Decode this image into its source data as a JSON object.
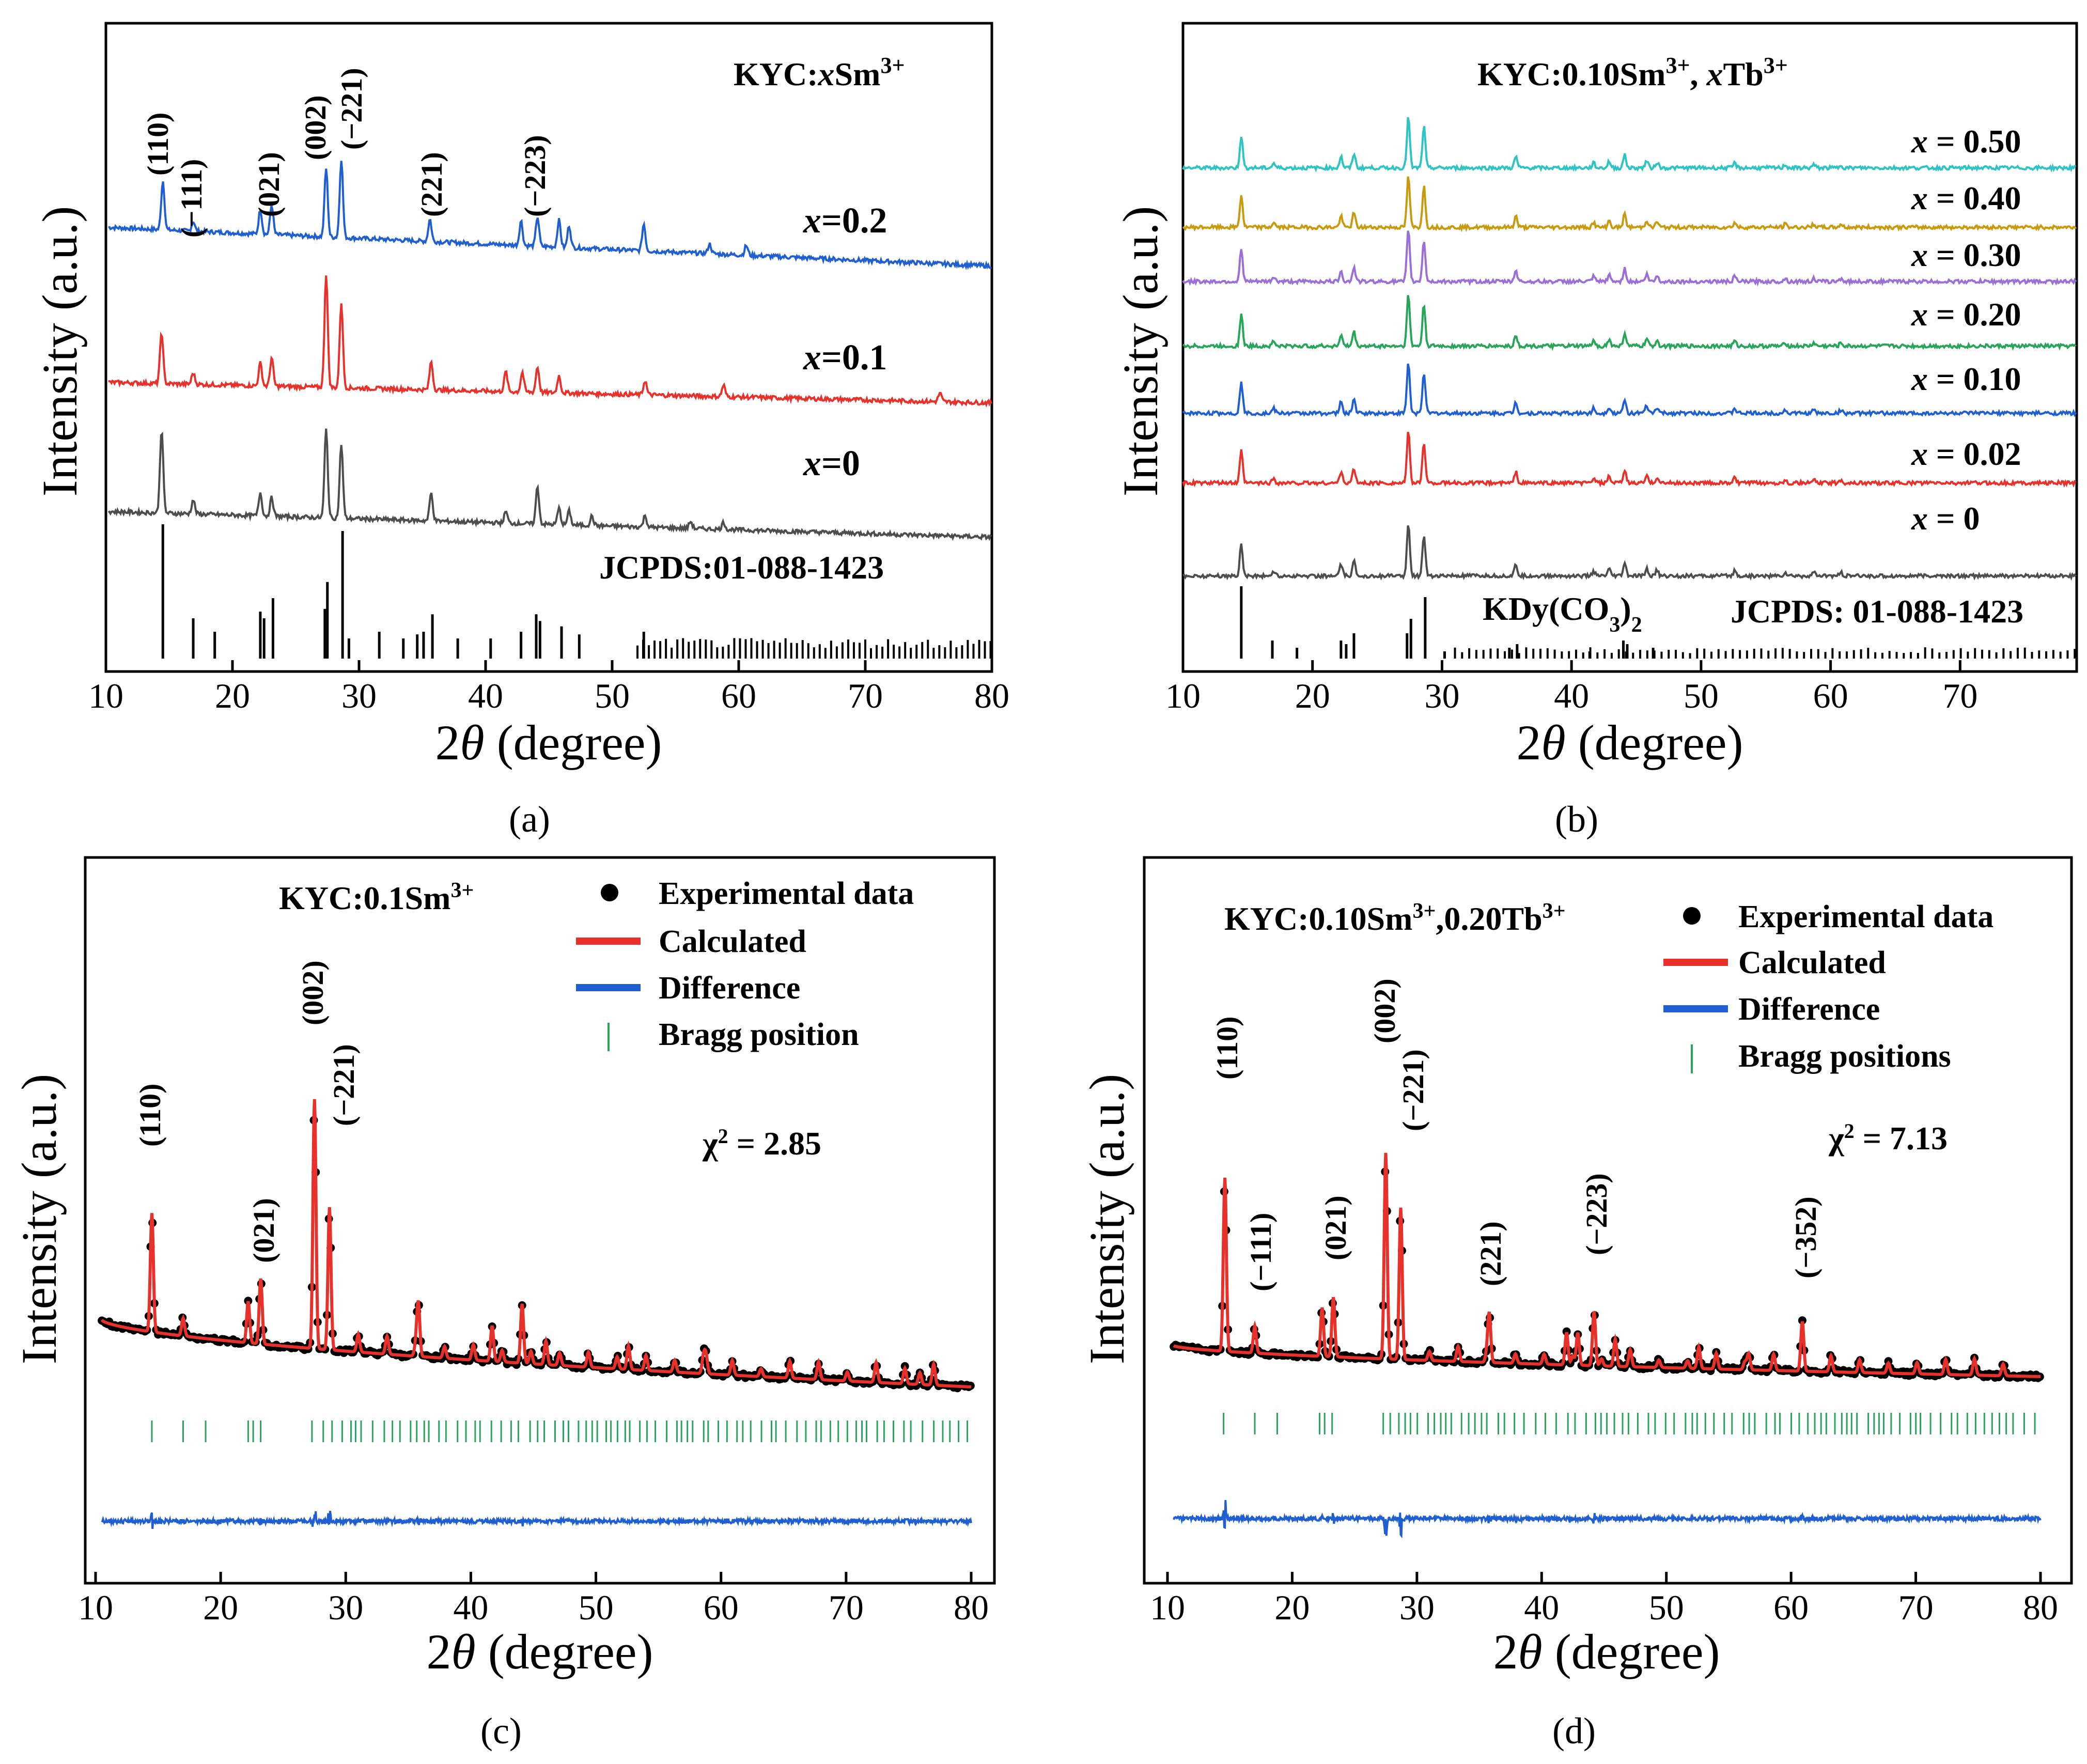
{
  "figure": {
    "panels": [
      {
        "id": "a",
        "caption": "(a)",
        "xlabel_prefix": "2",
        "xlabel_theta": "θ",
        "xlabel_suffix": " (degree)",
        "ylabel": "Intensity (a.u.)",
        "title_prefix": "KYC:",
        "title_var": "x",
        "title_main": "Sm",
        "title_sup": "3+",
        "reference": "JCPDS:01-088-1423",
        "curve_labels": [
          {
            "var": "x",
            "text": "=0.2"
          },
          {
            "var": "x",
            "text": "=0.1"
          },
          {
            "var": "x",
            "text": "=0"
          }
        ],
        "peak_labels": [
          "(110)",
          "(−111)",
          "(021)",
          "(002)",
          "(−221)",
          "(221)",
          "(−223)"
        ],
        "x_ticks": [
          "10",
          "20",
          "30",
          "40",
          "50",
          "60",
          "70",
          "80"
        ]
      },
      {
        "id": "b",
        "caption": "(b)",
        "xlabel_prefix": "2",
        "xlabel_theta": "θ",
        "xlabel_suffix": " (degree)",
        "ylabel": "Intensity (a.u.)",
        "title_p1": "KYC:0.10Sm",
        "title_sup1": "3+",
        "title_p2": ", ",
        "title_var": "x",
        "title_p3": "Tb",
        "title_sup2": "3+",
        "reference": "JCPDS: 01-088-1423",
        "ref_compound_main": "KDy(CO",
        "ref_compound_sub": "3",
        "ref_compound_end": ")",
        "ref_compound_sub2": "2",
        "curve_labels": [
          {
            "var": "x",
            "text": " = 0.50"
          },
          {
            "var": "x",
            "text": " = 0.40"
          },
          {
            "var": "x",
            "text": " = 0.30"
          },
          {
            "var": "x",
            "text": " = 0.20"
          },
          {
            "var": "x",
            "text": " = 0.10"
          },
          {
            "var": "x",
            "text": " = 0.02"
          },
          {
            "var": "x",
            "text": " = 0"
          }
        ],
        "x_ticks": [
          "10",
          "20",
          "30",
          "40",
          "50",
          "60",
          "70"
        ]
      },
      {
        "id": "c",
        "caption": "(c)",
        "xlabel_prefix": "2",
        "xlabel_theta": "θ",
        "xlabel_suffix": " (degree)",
        "ylabel": "Intensity (a.u.)",
        "title_main": "KYC:0.1Sm",
        "title_sup": "3+",
        "legend": [
          "Experimental data",
          "Calculated",
          "Difference",
          "Bragg position"
        ],
        "chi_main": "χ",
        "chi_sup": "2",
        "chi_value": " = 2.85",
        "peak_labels": [
          "(110)",
          "(021)",
          "(002)",
          "(−221)"
        ],
        "x_ticks": [
          "10",
          "20",
          "30",
          "40",
          "50",
          "60",
          "70",
          "80"
        ]
      },
      {
        "id": "d",
        "caption": "(d)",
        "xlabel_prefix": "2",
        "xlabel_theta": "θ",
        "xlabel_suffix": " (degree)",
        "ylabel": "Intensity (a.u.)",
        "title_p1": "KYC:0.10Sm",
        "title_sup1": "3+",
        "title_p2": ",0.20Tb",
        "title_sup2": "3+",
        "legend": [
          "Experimental data",
          "Calculated",
          "Difference",
          "Bragg positions"
        ],
        "chi_main": "χ",
        "chi_sup": "2",
        "chi_value": " = 7.13",
        "peak_labels": [
          "(110)",
          "(−111)",
          "(021)",
          "(002)",
          "(−221)",
          "(221)",
          "(−223)",
          "(−352)"
        ],
        "x_ticks": [
          "10",
          "20",
          "30",
          "40",
          "50",
          "60",
          "70",
          "80"
        ]
      }
    ],
    "colors": {
      "black": "#000000",
      "gray": "#4d4d4d",
      "red": "#e8312a",
      "blue": "#1f5fd1",
      "green": "#27a559",
      "purple": "#9b6fd6",
      "gold": "#c89a0d",
      "cyan": "#2ec4c4",
      "bragg": "#2ca25f"
    }
  },
  "chart_data": [
    {
      "type": "line",
      "panel": "a",
      "title": "KYC:xSm3+",
      "xlabel": "2θ (degree)",
      "ylabel": "Intensity (a.u.)",
      "xlim": [
        10,
        80
      ],
      "series": [
        {
          "name": "x=0.2",
          "color": "#1f5fd1",
          "peaks": [
            [
              14.5,
              1.0
            ],
            [
              16.9,
              0.2
            ],
            [
              22.2,
              0.5
            ],
            [
              23.1,
              0.6
            ],
            [
              27.4,
              1.4
            ],
            [
              28.6,
              1.6
            ],
            [
              35.6,
              0.45
            ],
            [
              42.8,
              0.5
            ],
            [
              44.1,
              0.6
            ],
            [
              45.8,
              0.55
            ],
            [
              46.6,
              0.45
            ],
            [
              52.5,
              0.55
            ],
            [
              57.7,
              0.2
            ],
            [
              60.6,
              0.2
            ]
          ]
        },
        {
          "name": "x=0.1",
          "color": "#e8312a",
          "peaks": [
            [
              14.4,
              0.9
            ],
            [
              16.9,
              0.2
            ],
            [
              22.2,
              0.4
            ],
            [
              23.1,
              0.5
            ],
            [
              27.4,
              2.0
            ],
            [
              28.6,
              1.5
            ],
            [
              35.7,
              0.5
            ],
            [
              41.6,
              0.35
            ],
            [
              42.9,
              0.35
            ],
            [
              44.1,
              0.45
            ],
            [
              45.8,
              0.3
            ],
            [
              52.6,
              0.25
            ],
            [
              58.8,
              0.2
            ],
            [
              75.9,
              0.15
            ]
          ]
        },
        {
          "name": "x=0",
          "color": "#4d4d4d",
          "peaks": [
            [
              14.4,
              1.8
            ],
            [
              16.9,
              0.3
            ],
            [
              22.2,
              0.5
            ],
            [
              23.1,
              0.4
            ],
            [
              27.4,
              1.9
            ],
            [
              28.6,
              1.6
            ],
            [
              35.7,
              0.6
            ],
            [
              41.6,
              0.25
            ],
            [
              44.1,
              0.8
            ],
            [
              45.8,
              0.35
            ],
            [
              46.6,
              0.3
            ],
            [
              48.4,
              0.2
            ],
            [
              52.6,
              0.25
            ],
            [
              56.2,
              0.15
            ],
            [
              58.8,
              0.15
            ]
          ]
        }
      ],
      "reference_lines": [
        [
          14.5,
          1.0
        ],
        [
          16.9,
          0.3
        ],
        [
          18.6,
          0.2
        ],
        [
          22.2,
          0.35
        ],
        [
          22.5,
          0.3
        ],
        [
          23.2,
          0.45
        ],
        [
          27.3,
          0.37
        ],
        [
          27.5,
          0.57
        ],
        [
          28.7,
          0.95
        ],
        [
          29.2,
          0.15
        ],
        [
          31.6,
          0.2
        ],
        [
          33.5,
          0.15
        ],
        [
          34.6,
          0.18
        ],
        [
          35.1,
          0.2
        ],
        [
          35.8,
          0.33
        ],
        [
          37.8,
          0.15
        ],
        [
          40.4,
          0.15
        ],
        [
          42.8,
          0.2
        ],
        [
          44.0,
          0.33
        ],
        [
          44.3,
          0.28
        ],
        [
          46.0,
          0.24
        ],
        [
          47.4,
          0.18
        ],
        [
          52.5,
          0.2
        ]
      ],
      "peak_positions_labeled": [
        [
          14.5,
          "(110)"
        ],
        [
          16.9,
          "(−111)"
        ],
        [
          23.1,
          "(021)"
        ],
        [
          27.4,
          "(002)"
        ],
        [
          28.6,
          "(−221)"
        ],
        [
          35.6,
          "(221)"
        ],
        [
          44.1,
          "(−223)"
        ]
      ]
    },
    {
      "type": "line",
      "panel": "b",
      "title": "KYC:0.10Sm3+, xTb3+",
      "xlabel": "2θ (degree)",
      "ylabel": "Intensity (a.u.)",
      "xlim": [
        10,
        79
      ],
      "series": [
        {
          "name": "x = 0.50",
          "color": "#2ec4c4"
        },
        {
          "name": "x = 0.40",
          "color": "#c89a0d"
        },
        {
          "name": "x = 0.30",
          "color": "#9b6fd6"
        },
        {
          "name": "x = 0.20",
          "color": "#27a559"
        },
        {
          "name": "x = 0.10",
          "color": "#1f5fd1"
        },
        {
          "name": "x = 0.02",
          "color": "#e8312a"
        },
        {
          "name": "x = 0",
          "color": "#4d4d4d"
        }
      ],
      "reference": "KDy(CO3)2 JCPDS: 01-088-1423"
    },
    {
      "type": "scatter",
      "panel": "c",
      "title": "KYC:0.1Sm3+",
      "xlabel": "2θ (degree)",
      "ylabel": "Intensity (a.u.)",
      "xlim": [
        10,
        80
      ],
      "chi2": 2.85,
      "series": [
        {
          "name": "Experimental data",
          "color": "#000000"
        },
        {
          "name": "Calculated",
          "color": "#e8312a"
        },
        {
          "name": "Difference",
          "color": "#1f5fd1"
        },
        {
          "name": "Bragg position",
          "color": "#2ca25f"
        }
      ],
      "peaks": [
        [
          14.5,
          1.0
        ],
        [
          17.0,
          0.15
        ],
        [
          22.2,
          0.35
        ],
        [
          23.2,
          0.55
        ],
        [
          27.5,
          2.1
        ],
        [
          28.7,
          1.2
        ],
        [
          35.8,
          0.45
        ],
        [
          41.7,
          0.3
        ],
        [
          44.1,
          0.5
        ],
        [
          46.0,
          0.2
        ],
        [
          52.6,
          0.2
        ],
        [
          58.8,
          0.15
        ],
        [
          75.9,
          0.1
        ]
      ]
    },
    {
      "type": "scatter",
      "panel": "d",
      "title": "KYC:0.10Sm3+,0.20Tb3+",
      "xlabel": "2θ (degree)",
      "ylabel": "Intensity (a.u.)",
      "xlim": [
        10,
        80
      ],
      "chi2": 7.13,
      "series": [
        {
          "name": "Experimental data",
          "color": "#000000"
        },
        {
          "name": "Calculated",
          "color": "#e8312a"
        },
        {
          "name": "Difference",
          "color": "#1f5fd1"
        },
        {
          "name": "Bragg positions",
          "color": "#2ca25f"
        }
      ],
      "peaks": [
        [
          14.6,
          1.6
        ],
        [
          17.0,
          0.25
        ],
        [
          22.4,
          0.45
        ],
        [
          23.3,
          0.55
        ],
        [
          27.5,
          1.9
        ],
        [
          28.7,
          1.4
        ],
        [
          35.8,
          0.45
        ],
        [
          42.0,
          0.3
        ],
        [
          42.9,
          0.3
        ],
        [
          44.2,
          0.5
        ],
        [
          45.9,
          0.25
        ],
        [
          52.6,
          0.2
        ],
        [
          56.6,
          0.15
        ],
        [
          60.9,
          0.35
        ]
      ]
    }
  ]
}
